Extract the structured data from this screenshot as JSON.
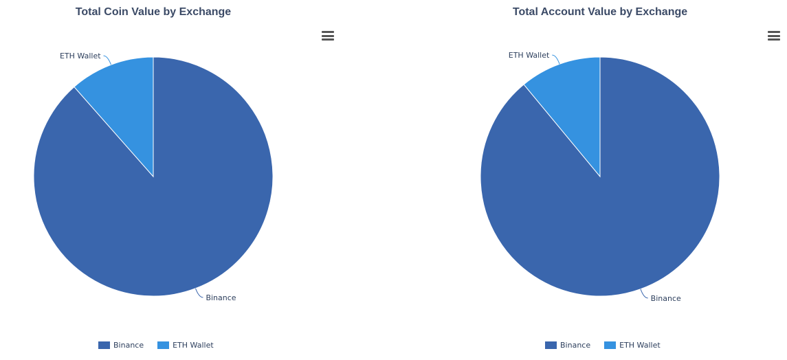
{
  "chart_data": [
    {
      "type": "pie",
      "title": "Total Coin Value by Exchange",
      "slices": [
        {
          "name": "Binance",
          "value": 88.5,
          "color": "#3a66ad"
        },
        {
          "name": "ETH Wallet",
          "value": 11.5,
          "color": "#3592e0"
        }
      ],
      "legend": [
        "Binance",
        "ETH Wallet"
      ],
      "legend_position": "bottom"
    },
    {
      "type": "pie",
      "title": "Total Account Value by Exchange",
      "slices": [
        {
          "name": "Binance",
          "value": 89.0,
          "color": "#3a66ad"
        },
        {
          "name": "ETH Wallet",
          "value": 11.0,
          "color": "#3592e0"
        }
      ],
      "legend": [
        "Binance",
        "ETH Wallet"
      ],
      "legend_position": "bottom"
    }
  ],
  "menu_icon": "hamburger-menu-icon"
}
